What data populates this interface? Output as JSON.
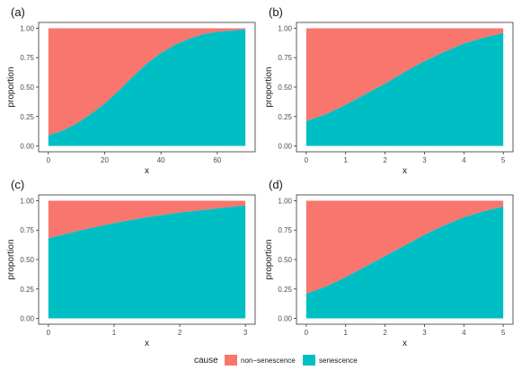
{
  "legend": {
    "title": "cause",
    "items": [
      {
        "label": "non−senescence",
        "color": "#F8766D"
      },
      {
        "label": "senescence",
        "color": "#00BFC4"
      }
    ]
  },
  "chart_data": [
    {
      "type": "area",
      "panel": "(a)",
      "xlabel": "x",
      "ylabel": "proportion",
      "xlim": [
        0,
        70
      ],
      "ylim": [
        0,
        1
      ],
      "x_ticks": [
        0,
        20,
        40,
        60
      ],
      "y_ticks": [
        "0.00",
        "0.25",
        "0.50",
        "0.75",
        "1.00"
      ],
      "stacked": true,
      "series": [
        {
          "name": "senescence",
          "color": "#00BFC4",
          "x": [
            0,
            5,
            10,
            15,
            20,
            25,
            30,
            35,
            40,
            45,
            50,
            55,
            60,
            65,
            70
          ],
          "values": [
            0.09,
            0.13,
            0.19,
            0.27,
            0.36,
            0.47,
            0.59,
            0.7,
            0.79,
            0.86,
            0.91,
            0.95,
            0.97,
            0.98,
            0.99
          ]
        },
        {
          "name": "non−senescence",
          "color": "#F8766D",
          "x": [
            0,
            5,
            10,
            15,
            20,
            25,
            30,
            35,
            40,
            45,
            50,
            55,
            60,
            65,
            70
          ],
          "values": [
            0.91,
            0.87,
            0.81,
            0.73,
            0.64,
            0.53,
            0.41,
            0.3,
            0.21,
            0.14,
            0.09,
            0.05,
            0.03,
            0.02,
            0.01
          ]
        }
      ]
    },
    {
      "type": "area",
      "panel": "(b)",
      "xlabel": "x",
      "ylabel": "proportion",
      "xlim": [
        0,
        5
      ],
      "ylim": [
        0,
        1
      ],
      "x_ticks": [
        0,
        1,
        2,
        3,
        4,
        5
      ],
      "y_ticks": [
        "0.00",
        "0.25",
        "0.50",
        "0.75",
        "1.00"
      ],
      "stacked": true,
      "series": [
        {
          "name": "senescence",
          "color": "#00BFC4",
          "x": [
            0,
            0.5,
            1,
            1.5,
            2,
            2.5,
            3,
            3.5,
            4,
            4.5,
            5
          ],
          "values": [
            0.21,
            0.27,
            0.35,
            0.44,
            0.53,
            0.63,
            0.72,
            0.8,
            0.87,
            0.92,
            0.96
          ]
        },
        {
          "name": "non−senescence",
          "color": "#F8766D",
          "x": [
            0,
            0.5,
            1,
            1.5,
            2,
            2.5,
            3,
            3.5,
            4,
            4.5,
            5
          ],
          "values": [
            0.79,
            0.73,
            0.65,
            0.56,
            0.47,
            0.37,
            0.28,
            0.2,
            0.13,
            0.08,
            0.04
          ]
        }
      ]
    },
    {
      "type": "area",
      "panel": "(c)",
      "xlabel": "x",
      "ylabel": "proportion",
      "xlim": [
        0,
        3
      ],
      "ylim": [
        0,
        1
      ],
      "x_ticks": [
        0,
        1,
        2,
        3
      ],
      "y_ticks": [
        "0.00",
        "0.25",
        "0.50",
        "0.75",
        "1.00"
      ],
      "stacked": true,
      "series": [
        {
          "name": "senescence",
          "color": "#00BFC4",
          "x": [
            0,
            0.5,
            1,
            1.5,
            2,
            2.5,
            3
          ],
          "values": [
            0.68,
            0.75,
            0.81,
            0.86,
            0.9,
            0.93,
            0.96
          ]
        },
        {
          "name": "non−senescence",
          "color": "#F8766D",
          "x": [
            0,
            0.5,
            1,
            1.5,
            2,
            2.5,
            3
          ],
          "values": [
            0.32,
            0.25,
            0.19,
            0.14,
            0.1,
            0.07,
            0.04
          ]
        }
      ]
    },
    {
      "type": "area",
      "panel": "(d)",
      "xlabel": "x",
      "ylabel": "proportion",
      "xlim": [
        0,
        5
      ],
      "ylim": [
        0,
        1
      ],
      "x_ticks": [
        0,
        1,
        2,
        3,
        4,
        5
      ],
      "y_ticks": [
        "0.00",
        "0.25",
        "0.50",
        "0.75",
        "1.00"
      ],
      "stacked": true,
      "series": [
        {
          "name": "senescence",
          "color": "#00BFC4",
          "x": [
            0,
            0.5,
            1,
            1.5,
            2,
            2.5,
            3,
            3.5,
            4,
            4.5,
            5
          ],
          "values": [
            0.21,
            0.27,
            0.35,
            0.44,
            0.53,
            0.62,
            0.71,
            0.79,
            0.86,
            0.91,
            0.95
          ]
        },
        {
          "name": "non−senescence",
          "color": "#F8766D",
          "x": [
            0,
            0.5,
            1,
            1.5,
            2,
            2.5,
            3,
            3.5,
            4,
            4.5,
            5
          ],
          "values": [
            0.79,
            0.73,
            0.65,
            0.56,
            0.47,
            0.38,
            0.29,
            0.21,
            0.14,
            0.09,
            0.05
          ]
        }
      ]
    }
  ]
}
